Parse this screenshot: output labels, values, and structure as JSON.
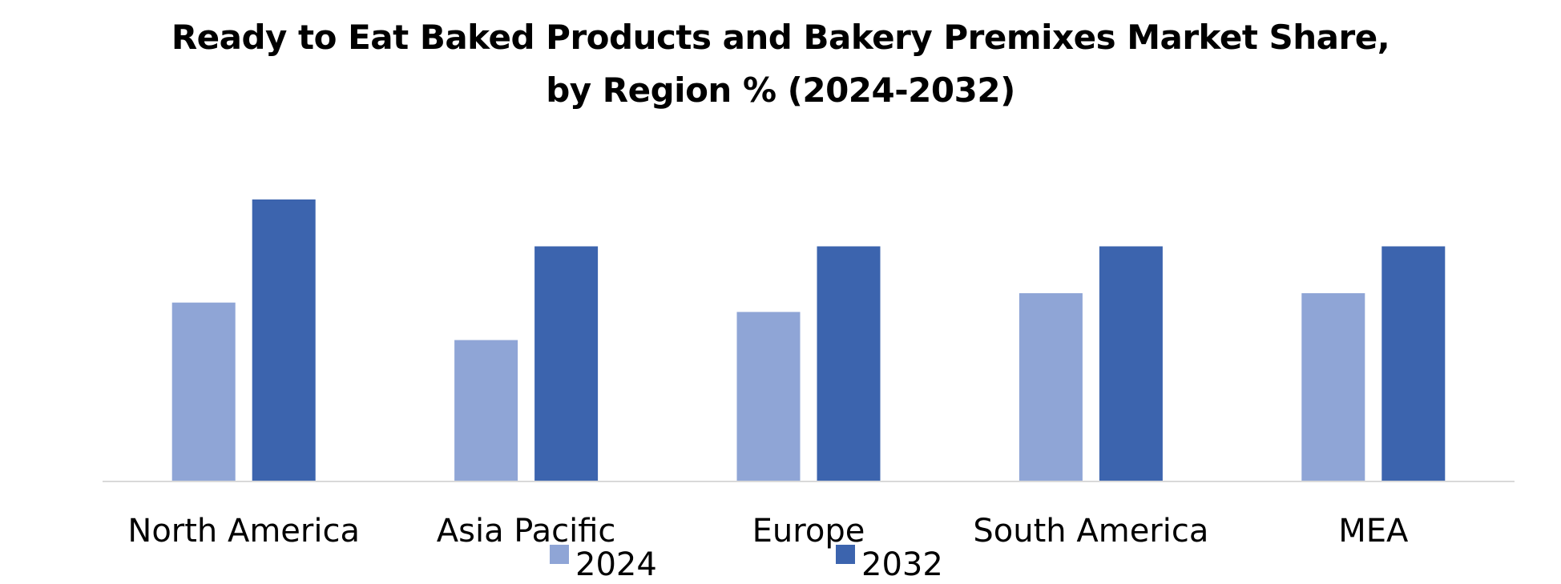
{
  "chart_data": {
    "type": "bar",
    "title_lines": [
      "Ready to Eat Baked Products and Bakery Premixes Market Share,",
      "by Region % (2024-2032)"
    ],
    "categories": [
      "North America",
      "Asia Pacific",
      "Europe",
      "South America",
      "MEA"
    ],
    "series": [
      {
        "name": "2024",
        "color": "#8FA5D6",
        "values": [
          19,
          15,
          18,
          20,
          20
        ]
      },
      {
        "name": "2032",
        "color": "#3C64AE",
        "values": [
          30,
          25,
          25,
          25,
          25
        ]
      }
    ],
    "ylim": [
      0,
      32
    ],
    "axis_color": "#D9D9D9",
    "grid": false,
    "legend_position": "bottom"
  }
}
